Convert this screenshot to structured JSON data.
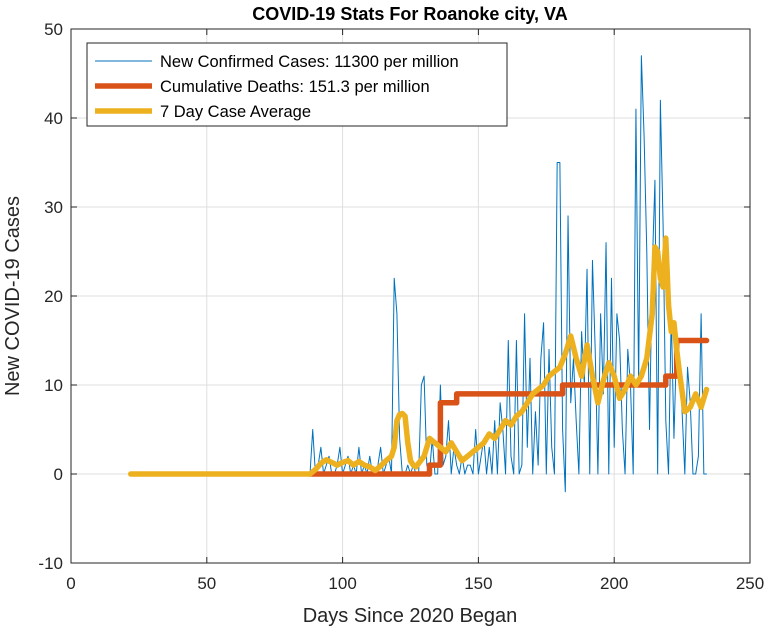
{
  "chart_data": {
    "type": "line",
    "title": "COVID-19 Stats For Roanoke city, VA",
    "xlabel": "Days Since 2020 Began",
    "ylabel": "New COVID-19 Cases",
    "xlim": [
      0,
      250
    ],
    "ylim": [
      -10,
      50
    ],
    "xticks": [
      0,
      50,
      100,
      150,
      200,
      250
    ],
    "yticks": [
      -10,
      0,
      10,
      20,
      30,
      40,
      50
    ],
    "xtick_labels": [
      "0",
      "50",
      "100",
      "150",
      "200",
      "250"
    ],
    "ytick_labels": [
      "-10",
      "0",
      "10",
      "20",
      "30",
      "40",
      "50"
    ],
    "grid": true,
    "legend_position": "top-left",
    "series": [
      {
        "name": "New Confirmed Cases: 11300 per million",
        "color": "#0072BD",
        "style": "thin",
        "x": [
          88,
          89,
          90,
          91,
          92,
          93,
          94,
          95,
          96,
          97,
          98,
          99,
          100,
          101,
          102,
          103,
          104,
          105,
          106,
          107,
          108,
          109,
          110,
          111,
          112,
          113,
          114,
          115,
          116,
          117,
          118,
          119,
          120,
          121,
          122,
          123,
          124,
          125,
          126,
          127,
          128,
          129,
          130,
          131,
          132,
          133,
          134,
          135,
          136,
          137,
          138,
          139,
          140,
          141,
          142,
          143,
          144,
          145,
          146,
          147,
          148,
          149,
          150,
          151,
          152,
          153,
          154,
          155,
          156,
          157,
          158,
          159,
          160,
          161,
          162,
          163,
          164,
          165,
          166,
          167,
          168,
          169,
          170,
          171,
          172,
          173,
          174,
          175,
          176,
          177,
          178,
          179,
          180,
          181,
          182,
          183,
          184,
          185,
          186,
          187,
          188,
          189,
          190,
          191,
          192,
          193,
          194,
          195,
          196,
          197,
          198,
          199,
          200,
          201,
          202,
          203,
          204,
          205,
          206,
          207,
          208,
          209,
          210,
          211,
          212,
          213,
          214,
          215,
          216,
          217,
          218,
          219,
          220,
          221,
          222,
          223,
          224,
          225,
          226,
          227,
          228,
          229,
          230,
          231,
          232,
          233,
          234
        ],
        "y": [
          0,
          5,
          0,
          1,
          3,
          0,
          1,
          2,
          0,
          0,
          1,
          3,
          0,
          1,
          2,
          0,
          1,
          0,
          3,
          0,
          1,
          0,
          2,
          0,
          0,
          1,
          3,
          0,
          1,
          2,
          0,
          22,
          18,
          4,
          0,
          0,
          1,
          0,
          1,
          0,
          0,
          10,
          11,
          1,
          0,
          4,
          0,
          0,
          10,
          1,
          2,
          6,
          0,
          3,
          1,
          0,
          2,
          0,
          1,
          1,
          0,
          5,
          0,
          2,
          4,
          0,
          3,
          0,
          6,
          0,
          8,
          5,
          0,
          15,
          2,
          0,
          15,
          0,
          1,
          18,
          3,
          13,
          0,
          7,
          1,
          13,
          17,
          0,
          14,
          3,
          0,
          35,
          35,
          5,
          -2,
          29,
          8,
          13,
          6,
          0,
          16,
          10,
          23,
          0,
          24,
          14,
          0,
          18,
          9,
          26,
          0,
          22,
          3,
          18,
          15,
          5,
          0,
          14,
          10,
          0,
          41,
          10,
          47,
          38,
          25,
          5,
          23,
          33,
          0,
          42,
          28,
          6,
          0,
          18,
          4,
          15,
          13,
          7,
          0,
          12,
          8,
          0,
          0,
          2,
          18,
          0,
          0
        ],
        "y_note": ""
      },
      {
        "name": "Cumulative Deaths: 151.3 per million",
        "color": "#D95319",
        "style": "thick",
        "x": [
          88,
          132,
          132,
          136,
          136,
          137,
          137,
          142,
          142,
          143,
          143,
          181,
          181,
          182,
          182,
          219,
          219,
          223,
          223,
          225,
          225,
          234
        ],
        "y": [
          0,
          0,
          1,
          1,
          8,
          8,
          8,
          8,
          9,
          9,
          9,
          9,
          10,
          10,
          10,
          10,
          11,
          11,
          15,
          15,
          15,
          15
        ]
      },
      {
        "name": "7 Day Case Average",
        "color": "#EDB120",
        "style": "thick",
        "x": [
          22,
          88,
          90,
          92,
          94,
          96,
          98,
          100,
          102,
          104,
          106,
          108,
          110,
          112,
          114,
          116,
          118,
          119,
          120,
          121,
          122,
          123,
          124,
          125,
          126,
          127,
          128,
          130,
          132,
          134,
          136,
          138,
          140,
          142,
          144,
          146,
          148,
          150,
          152,
          154,
          156,
          158,
          160,
          162,
          164,
          166,
          168,
          170,
          172,
          174,
          176,
          178,
          180,
          182,
          184,
          186,
          188,
          190,
          192,
          194,
          196,
          198,
          200,
          202,
          204,
          206,
          208,
          210,
          212,
          214,
          215,
          216,
          217,
          218,
          219,
          220,
          221,
          222,
          223,
          224,
          226,
          228,
          230,
          232,
          234
        ],
        "y": [
          0,
          0,
          0.5,
          1.2,
          1.6,
          1.3,
          1.0,
          1.3,
          1.5,
          1.0,
          1.4,
          1.0,
          0.8,
          0.4,
          0.9,
          1.5,
          2.0,
          3.0,
          6.0,
          6.7,
          6.8,
          6.5,
          3.5,
          1.5,
          1.0,
          0.8,
          1.2,
          2.0,
          4.0,
          3.5,
          3.0,
          2.5,
          3.5,
          2.5,
          1.5,
          2.0,
          2.5,
          3.0,
          3.5,
          4.5,
          4.0,
          5.0,
          6.0,
          5.5,
          6.5,
          7.0,
          8.0,
          9.0,
          9.5,
          10.0,
          11.0,
          11.5,
          12.0,
          13.5,
          15.5,
          13.0,
          11.0,
          14.5,
          11.0,
          8.0,
          10.5,
          12.5,
          11.0,
          8.5,
          9.5,
          11.0,
          10.0,
          11.0,
          13.0,
          18.0,
          25.5,
          25.0,
          22.0,
          21.0,
          26.5,
          19.0,
          16.0,
          17.0,
          14.0,
          11.5,
          7.0,
          7.5,
          9.0,
          7.5,
          9.5
        ]
      }
    ]
  }
}
